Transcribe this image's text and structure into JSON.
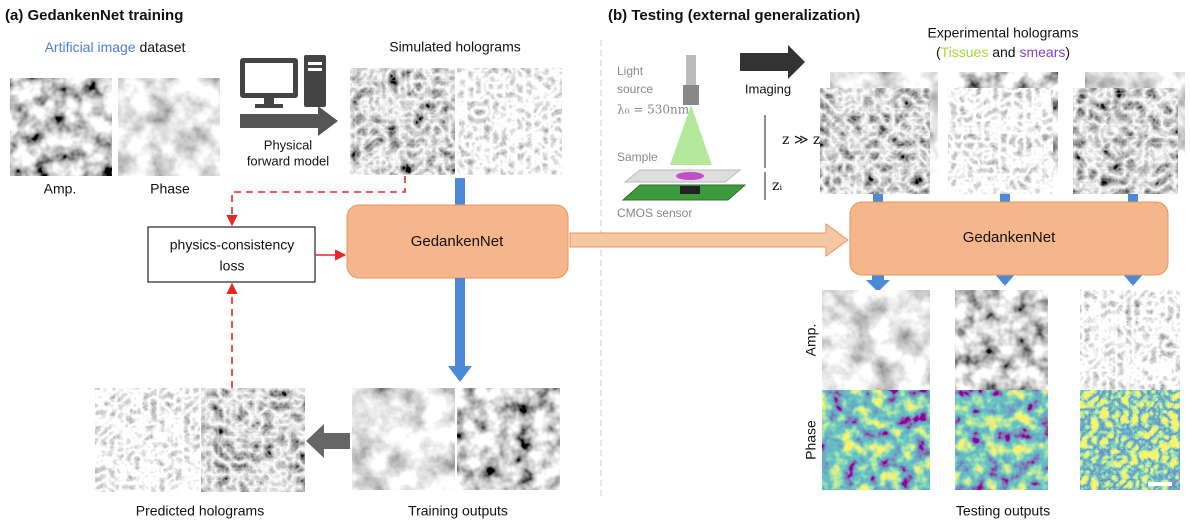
{
  "panel_a": {
    "title": "(a) GedankenNet training",
    "dataset_highlight": "Artificial image",
    "dataset_rest": "dataset",
    "amp_label": "Amp.",
    "phase_label": "Phase",
    "forward_model": [
      "Physical",
      "forward model"
    ],
    "simulated_label": "Simulated holograms",
    "loss_label": [
      "physics-consistency",
      "loss"
    ],
    "network": "GedankenNet",
    "predicted_label": "Predicted holograms",
    "outputs_label": "Training outputs"
  },
  "panel_b": {
    "title": "(b) Testing (external generalization)",
    "light_source": [
      "Light",
      "source"
    ],
    "wavelength": "λ₀ = 530nm",
    "sample": "Sample",
    "sensor": "CMOS sensor",
    "imaging": "Imaging",
    "distance": "z ≫ zᵢ",
    "distance_small": "zᵢ",
    "holograms_label": "Experimental holograms",
    "holograms_sub": [
      "(",
      "Tissues",
      "and",
      "smears",
      ")"
    ],
    "network": "GedankenNet",
    "amp_label": "Amp.",
    "phase_label": "Phase",
    "outputs_label": "Testing outputs"
  }
}
